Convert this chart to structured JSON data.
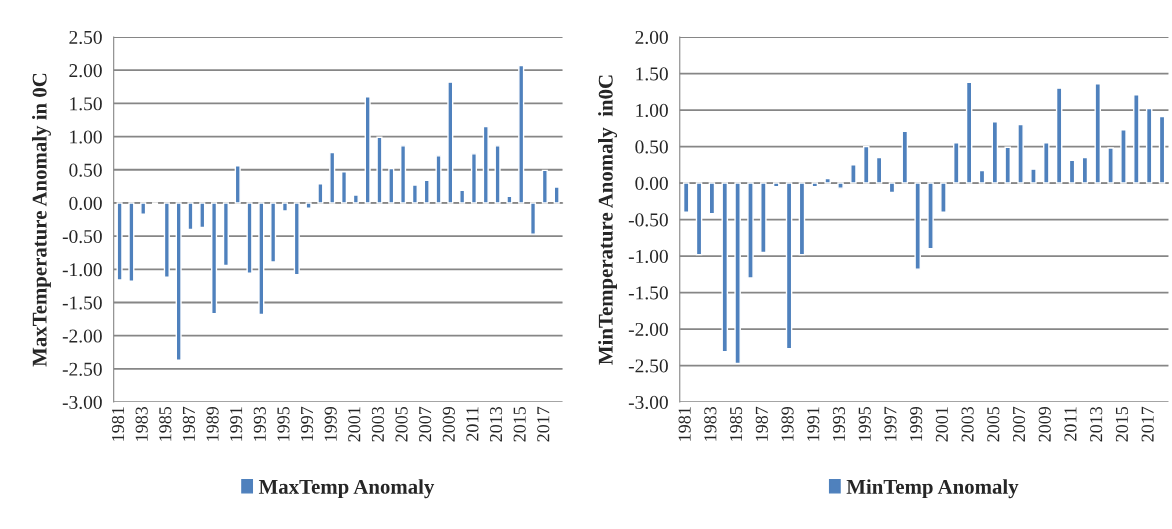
{
  "chart_data": [
    {
      "type": "bar",
      "ylabel": "MaxTemperature Anomaly in 0C",
      "categories": [
        "1981",
        null,
        "1983",
        null,
        "1985",
        null,
        "1987",
        null,
        "1989",
        null,
        "1991",
        null,
        "1993",
        null,
        "1995",
        null,
        "1997",
        null,
        "1999",
        null,
        "2001",
        null,
        "2003",
        null,
        "2005",
        null,
        "2007",
        null,
        "2009",
        null,
        "2011",
        null,
        "2013",
        null,
        "2015",
        null,
        "2017",
        null
      ],
      "series": [
        {
          "name": "MaxTemp Anomaly",
          "color": "#4f81bd",
          "values": [
            -1.16,
            -1.18,
            -0.17,
            -0.02,
            -1.12,
            -2.37,
            -0.4,
            -0.37,
            -1.67,
            -0.94,
            0.56,
            -1.06,
            -1.68,
            -0.89,
            -0.12,
            -1.08,
            -0.08,
            0.29,
            0.76,
            0.47,
            0.12,
            1.6,
            0.99,
            0.52,
            0.86,
            0.27,
            0.34,
            0.71,
            1.82,
            0.19,
            0.74,
            1.15,
            0.86,
            0.1,
            2.07,
            -0.47,
            0.49,
            0.24
          ]
        }
      ],
      "ylim": [
        -3.0,
        2.5
      ],
      "yticks": [
        {
          "value": -3.0,
          "label": "-3.00"
        },
        {
          "value": -2.5,
          "label": "-2.50"
        },
        {
          "value": -2.0,
          "label": "-2.00"
        },
        {
          "value": -1.5,
          "label": "-1.50"
        },
        {
          "value": -1.0,
          "label": "-1.00"
        },
        {
          "value": -0.5,
          "label": "-0.50"
        },
        {
          "value": 0.0,
          "label": "0.00"
        },
        {
          "value": 0.5,
          "label": "0.50"
        },
        {
          "value": 1.0,
          "label": "1.00"
        },
        {
          "value": 1.5,
          "label": "1.50"
        },
        {
          "value": 2.0,
          "label": "2.00"
        },
        {
          "value": 2.5,
          "label": "2.50"
        }
      ],
      "grid": "y",
      "legend": "bottom"
    },
    {
      "type": "bar",
      "ylabel": "MinTemperature Anomaly  in0C",
      "categories": [
        "1981",
        null,
        "1983",
        null,
        "1985",
        null,
        "1987",
        null,
        "1989",
        null,
        "1991",
        null,
        "1993",
        null,
        "1995",
        null,
        "1997",
        null,
        "1999",
        null,
        "2001",
        null,
        "2003",
        null,
        "2005",
        null,
        "2007",
        null,
        "2009",
        null,
        "2011",
        null,
        "2013",
        null,
        "2015",
        null,
        "2017",
        null
      ],
      "series": [
        {
          "name": "MinTemp Anomaly",
          "color": "#4f81bd",
          "values": [
            -0.4,
            -0.98,
            -0.42,
            -2.31,
            -2.47,
            -1.3,
            -0.95,
            -0.05,
            -2.27,
            -0.98,
            -0.05,
            0.06,
            -0.07,
            0.25,
            0.5,
            0.35,
            -0.13,
            0.71,
            -1.18,
            -0.9,
            -0.4,
            0.55,
            1.38,
            0.17,
            0.84,
            0.49,
            0.8,
            0.19,
            0.55,
            1.3,
            0.31,
            0.35,
            1.36,
            0.48,
            0.73,
            1.21,
            1.02,
            0.91
          ]
        }
      ],
      "ylim": [
        -3.0,
        2.0
      ],
      "yticks": [
        {
          "value": -3.0,
          "label": "-3.00"
        },
        {
          "value": -2.5,
          "label": "-2.50"
        },
        {
          "value": -2.0,
          "label": "-2.00"
        },
        {
          "value": -1.5,
          "label": "-1.50"
        },
        {
          "value": -1.0,
          "label": "-1.00"
        },
        {
          "value": -0.5,
          "label": "-0.50"
        },
        {
          "value": 0.0,
          "label": "0.00"
        },
        {
          "value": 0.5,
          "label": "0.50"
        },
        {
          "value": 1.0,
          "label": "1.00"
        },
        {
          "value": 1.5,
          "label": "1.50"
        },
        {
          "value": 2.0,
          "label": "2.00"
        }
      ],
      "grid": "y",
      "legend": "bottom"
    }
  ]
}
